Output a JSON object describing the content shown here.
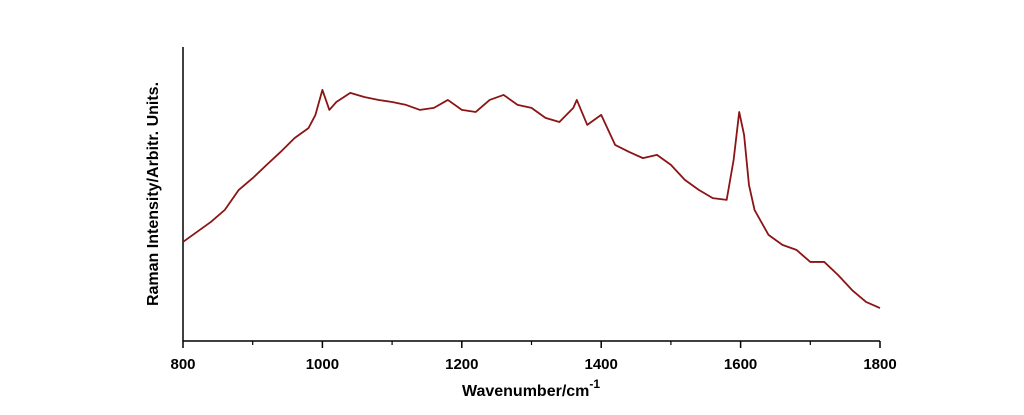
{
  "chart_data": {
    "type": "line",
    "x_label": {
      "text": "Wavenumber/cm",
      "superscript": "-1"
    },
    "y_label": "Raman Intensity/Arbitr. Units.",
    "x": [
      800,
      820,
      840,
      860,
      880,
      900,
      920,
      940,
      960,
      980,
      990,
      1000,
      1010,
      1020,
      1040,
      1060,
      1080,
      1100,
      1120,
      1140,
      1160,
      1180,
      1200,
      1220,
      1240,
      1260,
      1280,
      1300,
      1320,
      1340,
      1360,
      1365,
      1380,
      1400,
      1420,
      1440,
      1460,
      1480,
      1500,
      1520,
      1540,
      1560,
      1580,
      1590,
      1598,
      1605,
      1612,
      1620,
      1640,
      1660,
      1680,
      1700,
      1720,
      1740,
      1760,
      1780,
      1800
    ],
    "series": [
      {
        "color": "#8b1414",
        "values": [
          33.7,
          37.1,
          40.5,
          44.6,
          51.4,
          55.4,
          59.9,
          64.3,
          69.0,
          72.4,
          76.9,
          85.4,
          78.6,
          81.3,
          84.4,
          83.0,
          82.0,
          81.3,
          80.3,
          78.6,
          79.3,
          82.0,
          78.6,
          77.9,
          82.0,
          83.7,
          80.3,
          79.3,
          75.9,
          74.5,
          79.3,
          82.0,
          73.5,
          76.9,
          66.7,
          64.3,
          62.2,
          63.3,
          59.9,
          54.8,
          51.4,
          48.6,
          48.0,
          61.6,
          77.9,
          70.1,
          53.1,
          44.6,
          36.1,
          32.7,
          31.0,
          26.9,
          26.9,
          22.4,
          17.3,
          13.3,
          11.2
        ]
      }
    ],
    "xlim": [
      800,
      1800
    ],
    "xticks": [
      800,
      1000,
      1200,
      1400,
      1600,
      1800
    ],
    "xminorticks": [
      900,
      1100,
      1300,
      1500,
      1700
    ],
    "ylim": [
      0,
      100
    ],
    "grid": false
  }
}
